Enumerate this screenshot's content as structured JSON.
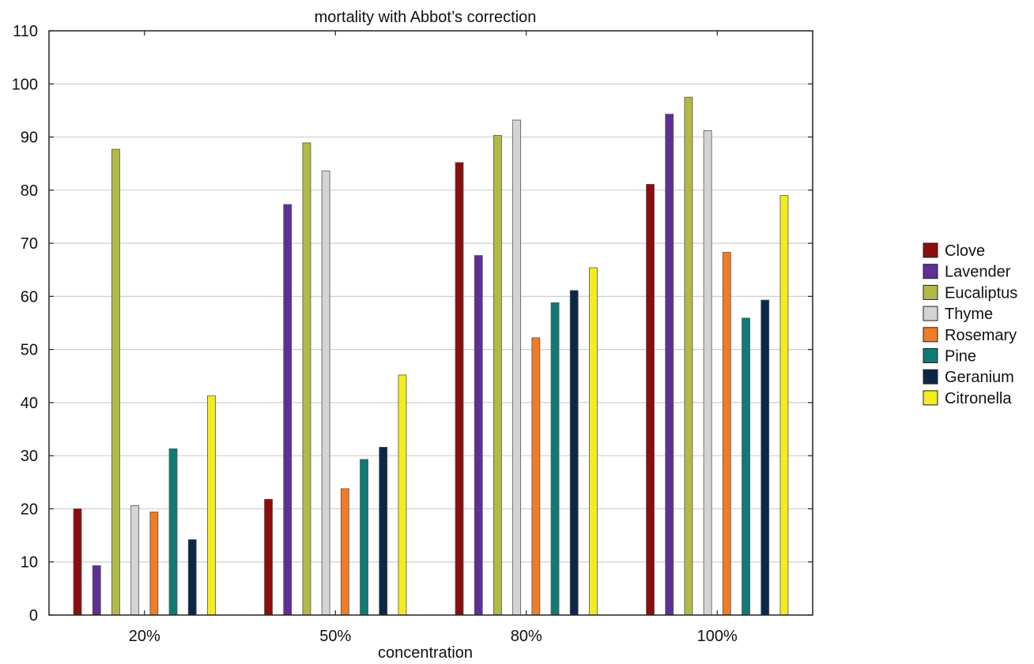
{
  "chart_data": {
    "type": "bar",
    "title": "mortality with Abbot’s correction",
    "xlabel": "concentration",
    "ylabel": "",
    "ylim": [
      0,
      110
    ],
    "yticks": [
      "0",
      "10",
      "20",
      "30",
      "40",
      "50",
      "60",
      "70",
      "80",
      "90",
      "100",
      "110"
    ],
    "categories": [
      "20%",
      "50%",
      "80%",
      "100%"
    ],
    "grid": "horizontal",
    "legend_position": "right",
    "series": [
      {
        "name": "Clove",
        "color": "#8b0e0e",
        "values": [
          20,
          21.8,
          85.2,
          81.1
        ]
      },
      {
        "name": "Lavender",
        "color": "#5e2f95",
        "values": [
          9.3,
          77.3,
          67.7,
          94.3
        ]
      },
      {
        "name": "Eucaliptus",
        "color": "#b3b947",
        "values": [
          87.7,
          88.9,
          90.3,
          97.5
        ]
      },
      {
        "name": "Thyme",
        "color": "#d4d4d4",
        "values": [
          20.6,
          83.6,
          93.2,
          91.2
        ]
      },
      {
        "name": "Rosemary",
        "color": "#f07c24",
        "values": [
          19.4,
          23.8,
          52.2,
          68.3
        ]
      },
      {
        "name": "Pine",
        "color": "#0f7b74",
        "values": [
          31.3,
          29.3,
          58.8,
          55.9
        ]
      },
      {
        "name": "Geranium",
        "color": "#0b2848",
        "values": [
          14.2,
          31.6,
          61.1,
          59.3
        ]
      },
      {
        "name": "Citronella",
        "color": "#f3ec1f",
        "values": [
          41.3,
          45.2,
          65.4,
          79
        ]
      }
    ]
  }
}
